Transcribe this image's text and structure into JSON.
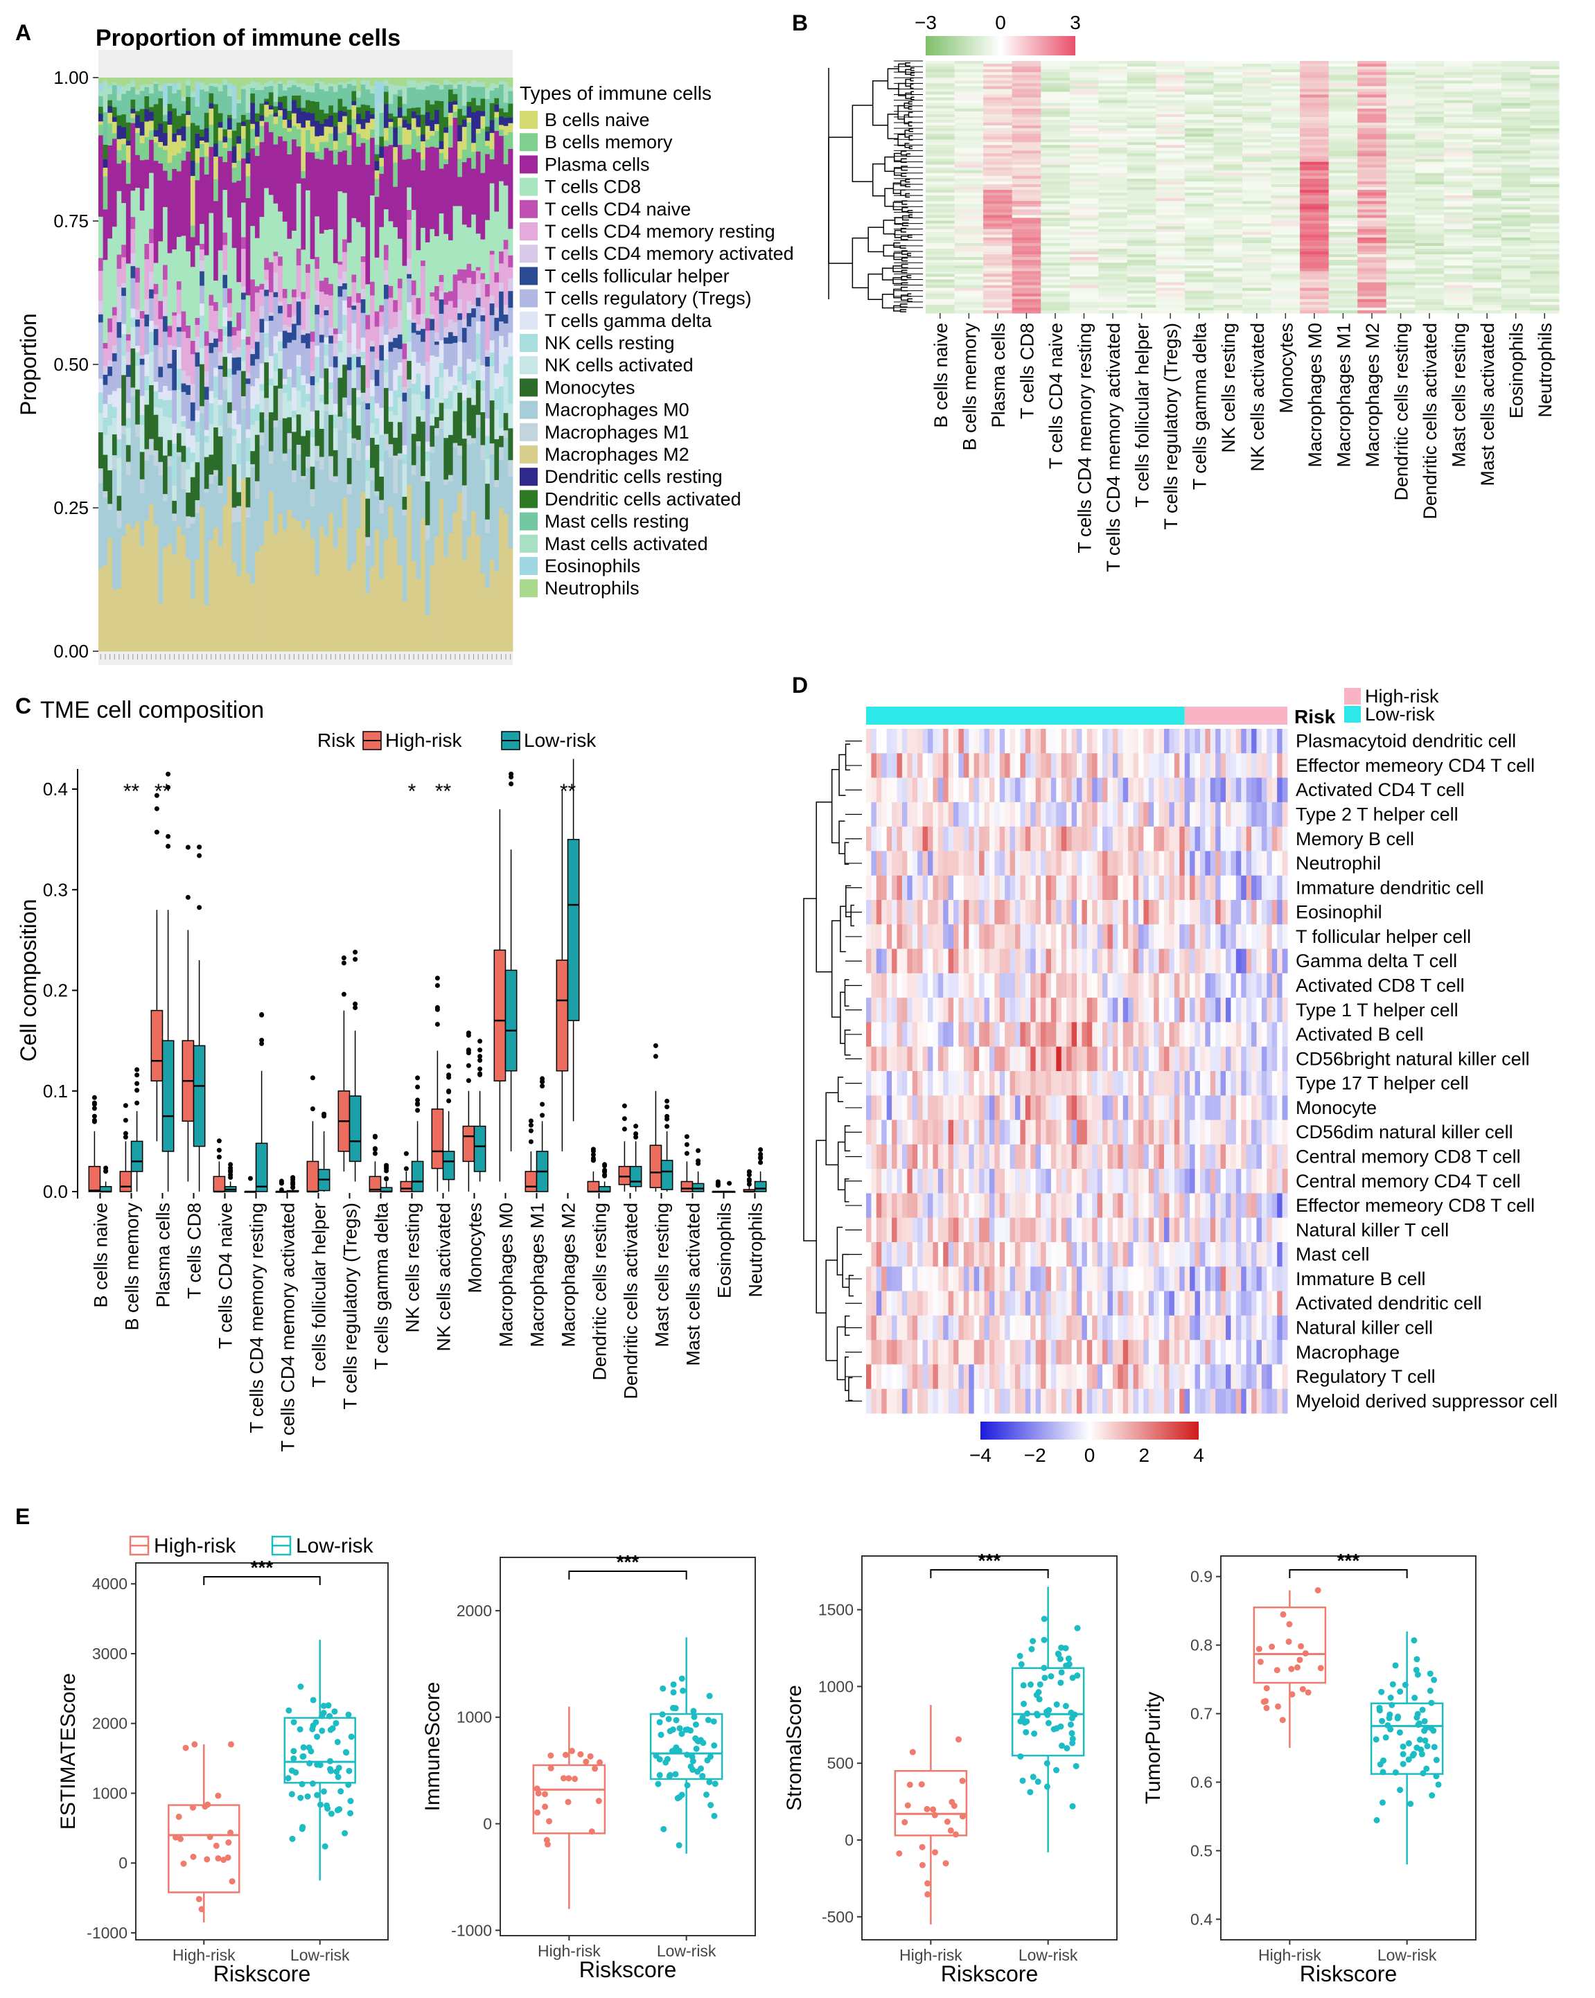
{
  "panels": {
    "A": "A",
    "B": "B",
    "C": "C",
    "D": "D",
    "E": "E"
  },
  "cell_types": [
    "B cells naive",
    "B cells memory",
    "Plasma cells",
    "T cells CD8",
    "T cells CD4 naive",
    "T cells CD4 memory resting",
    "T cells CD4 memory activated",
    "T cells follicular helper",
    "T cells regulatory (Tregs)",
    "T cells gamma delta",
    "NK cells resting",
    "NK cells activated",
    "Monocytes",
    "Macrophages M0",
    "Macrophages M1",
    "Macrophages M2",
    "Dendritic cells resting",
    "Dendritic cells activated",
    "Mast cells resting",
    "Mast cells activated",
    "Eosinophils",
    "Neutrophils"
  ],
  "cell_colors": {
    "B cells naive": "#d4db73",
    "B cells memory": "#7fd08f",
    "Plasma cells": "#a0279b",
    "T cells CD8": "#a7e6be",
    "T cells CD4 naive": "#c04fb4",
    "T cells CD4 memory resting": "#e4aadb",
    "T cells CD4 memory activated": "#d9c9e9",
    "T cells follicular helper": "#2a4b94",
    "T cells regulatory (Tregs)": "#b1b8e3",
    "T cells gamma delta": "#dfe6f5",
    "NK cells resting": "#a9dede",
    "NK cells activated": "#c7e6e6",
    "Monocytes": "#2b6c2a",
    "Macrophages M0": "#a7ced8",
    "Macrophages M1": "#c2d5de",
    "Macrophages M2": "#d8cd8b",
    "Dendritic cells resting": "#2d2a8c",
    "Dendritic cells activated": "#2e7a24",
    "Mast cells resting": "#73c8a3",
    "Mast cells activated": "#a9e0c4",
    "Eosinophils": "#9fd7e3",
    "Neutrophils": "#a9d98d"
  },
  "chart_data": [
    {
      "panel": "A",
      "type": "bar",
      "stacked": true,
      "title": "Proportion of immune cells",
      "ylabel": "Proportion",
      "xlabel": "",
      "ylim": [
        0,
        1
      ],
      "yticks": [
        "0.00",
        "0.25",
        "0.50",
        "0.75",
        "1.00"
      ],
      "legend_title": "Types of immune cells",
      "n_samples": 90,
      "mean_composition": [
        0.02,
        0.03,
        0.13,
        0.11,
        0.02,
        0.05,
        0.02,
        0.02,
        0.06,
        0.03,
        0.03,
        0.04,
        0.06,
        0.16,
        0.02,
        0.22,
        0.02,
        0.02,
        0.03,
        0.01,
        0.0,
        0.01
      ]
    },
    {
      "panel": "B",
      "type": "heatmap",
      "colorbar_ticks": [
        "−3",
        "0",
        "3"
      ],
      "colorbar_colors": [
        "#7fbf6a",
        "#ffffff",
        "#e8506a"
      ],
      "n_rows": 90,
      "columns_ref": "cell_types",
      "column_means": [
        0.1,
        0.4,
        1.2,
        1.4,
        0.1,
        0.5,
        0.2,
        0.1,
        0.5,
        0.1,
        0.2,
        0.3,
        0.3,
        1.6,
        0.1,
        2.4,
        0.1,
        0.1,
        0.3,
        0.1,
        0.0,
        0.0
      ]
    },
    {
      "panel": "C",
      "type": "box",
      "title": "TME cell composition",
      "ylabel": "Cell composition",
      "ylim": [
        0,
        0.42
      ],
      "yticks": [
        "0.0",
        "0.1",
        "0.2",
        "0.3",
        "0.4"
      ],
      "legend_title": "Risk",
      "series": [
        {
          "name": "High-risk",
          "color": "#ec6d5d",
          "stats": [
            [
              0,
              0,
              0.001,
              0.025,
              0.06
            ],
            [
              0,
              0,
              0.005,
              0.02,
              0.05
            ],
            [
              0.05,
              0.11,
              0.13,
              0.18,
              0.28
            ],
            [
              0.01,
              0.07,
              0.11,
              0.15,
              0.26
            ],
            [
              0,
              0,
              0,
              0.015,
              0.03
            ],
            [
              0,
              0,
              0,
              0,
              0
            ],
            [
              0,
              0,
              0,
              0,
              0
            ],
            [
              0,
              0,
              0,
              0.03,
              0.07
            ],
            [
              0.02,
              0.04,
              0.07,
              0.1,
              0.18
            ],
            [
              0,
              0,
              0.002,
              0.015,
              0.03
            ],
            [
              0,
              0,
              0.003,
              0.01,
              0.02
            ],
            [
              0,
              0.023,
              0.04,
              0.082,
              0.14
            ],
            [
              0,
              0.03,
              0.055,
              0.065,
              0.1
            ],
            [
              0.01,
              0.11,
              0.17,
              0.24,
              0.38
            ],
            [
              0,
              0,
              0.005,
              0.02,
              0.04
            ],
            [
              0.04,
              0.12,
              0.19,
              0.23,
              0.4
            ],
            [
              0,
              0,
              0,
              0.01,
              0.02
            ],
            [
              0,
              0.007,
              0.015,
              0.025,
              0.05
            ],
            [
              0,
              0.004,
              0.019,
              0.046,
              0.1
            ],
            [
              0,
              0,
              0.003,
              0.01,
              0.03
            ],
            [
              0,
              0,
              0,
              0,
              0
            ],
            [
              0,
              0,
              0,
              0.002,
              0.005
            ]
          ],
          "stars": [
            "",
            "**",
            "**",
            "",
            "",
            "",
            "",
            "",
            "",
            "",
            "*",
            "**",
            "",
            "",
            "",
            "**",
            "",
            "",
            "",
            "",
            "",
            ""
          ]
        },
        {
          "name": "Low-risk",
          "color": "#1ca0a8",
          "stats": [
            [
              0,
              0,
              0,
              0.005,
              0.01
            ],
            [
              0,
              0.02,
              0.03,
              0.05,
              0.08
            ],
            [
              0,
              0.04,
              0.075,
              0.15,
              0.28
            ],
            [
              0,
              0.045,
              0.105,
              0.145,
              0.23
            ],
            [
              0,
              0,
              0.002,
              0.005,
              0.01
            ],
            [
              0,
              0,
              0.005,
              0.048,
              0.12
            ],
            [
              0,
              0,
              0,
              0.001,
              0.002
            ],
            [
              0,
              0.001,
              0.012,
              0.022,
              0.06
            ],
            [
              0.01,
              0.03,
              0.05,
              0.095,
              0.16
            ],
            [
              0,
              0,
              0,
              0.004,
              0.01
            ],
            [
              0,
              0,
              0.01,
              0.03,
              0.07
            ],
            [
              0,
              0.012,
              0.03,
              0.04,
              0.08
            ],
            [
              0.01,
              0.02,
              0.045,
              0.065,
              0.1
            ],
            [
              0.04,
              0.12,
              0.16,
              0.22,
              0.34
            ],
            [
              0,
              0,
              0.02,
              0.04,
              0.07
            ],
            [
              0.07,
              0.17,
              0.285,
              0.35,
              0.43
            ],
            [
              0,
              0,
              0,
              0.005,
              0.01
            ],
            [
              0,
              0.005,
              0.01,
              0.025,
              0.05
            ],
            [
              0,
              0.002,
              0.02,
              0.031,
              0.06
            ],
            [
              0,
              0,
              0.003,
              0.008,
              0.02
            ],
            [
              0,
              0,
              0,
              0,
              0
            ],
            [
              0,
              0,
              0.003,
              0.01,
              0.02
            ]
          ]
        }
      ]
    },
    {
      "panel": "D",
      "type": "heatmap",
      "annotation_label": "Risk",
      "legend": [
        "High-risk",
        "Low-risk"
      ],
      "legend_colors": [
        "#f8b4c4",
        "#2de8e8"
      ],
      "n_low": 62,
      "n_high": 20,
      "colorbar_ticks": [
        "−4",
        "−2",
        "0",
        "2",
        "4"
      ],
      "colorbar_colors": [
        "#1a1adf",
        "#ffffff",
        "#d11a1a"
      ],
      "rows": [
        "Plasmacytoid dendritic cell",
        "Effector memeory CD4 T cell",
        "Activated CD4 T cell",
        "Type 2 T helper cell",
        "Memory B cell",
        "Neutrophil",
        "Immature dendritic cell",
        "Eosinophil",
        "T follicular helper cell",
        "Gamma delta T cell",
        "Activated CD8 T cell",
        "Type 1 T helper cell",
        "Activated B cell",
        "CD56bright natural killer cell",
        "Type 17 T helper cell",
        "Monocyte",
        "CD56dim natural killer cell",
        "Central memory CD8 T cell",
        "Central memory CD4 T cell",
        "Effector memeory CD8 T cell",
        "Natural killer T cell",
        "Mast cell",
        "Immature  B cell",
        "Activated dendritic cell",
        "Natural killer cell",
        "Macrophage",
        "Regulatory T cell",
        "Myeloid derived suppressor cell"
      ]
    },
    {
      "panel": "E",
      "type": "box",
      "xlabel": "Riskscore",
      "categories": [
        "High-risk",
        "Low-risk"
      ],
      "legend": [
        "High-risk",
        "Low-risk"
      ],
      "colors": [
        "#f07a6e",
        "#1bbcc4"
      ],
      "subplots": [
        {
          "ylabel": "ESTIMATEScore",
          "ylim": [
            -1100,
            4300
          ],
          "yticks": [
            -1000,
            0,
            1000,
            2000,
            3000,
            4000
          ],
          "sig": "***",
          "high": {
            "whiskers": [
              -850,
              1700
            ],
            "q1": -420,
            "median": 400,
            "q3": 830
          },
          "low": {
            "whiskers": [
              -250,
              3200
            ],
            "q1": 1150,
            "median": 1450,
            "q3": 2080
          },
          "n_high": 23,
          "n_low": 66
        },
        {
          "ylabel": "ImmuneScore",
          "ylim": [
            -1050,
            2500
          ],
          "yticks": [
            -1000,
            0,
            1000,
            2000
          ],
          "sig": "***",
          "high": {
            "whiskers": [
              -800,
              1100
            ],
            "q1": -90,
            "median": 320,
            "q3": 550
          },
          "low": {
            "whiskers": [
              -280,
              1750
            ],
            "q1": 420,
            "median": 660,
            "q3": 1030
          },
          "n_high": 23,
          "n_low": 66
        },
        {
          "ylabel": "StromalScore",
          "ylim": [
            -650,
            1850
          ],
          "yticks": [
            -500,
            0,
            500,
            1000,
            1500
          ],
          "sig": "***",
          "high": {
            "whiskers": [
              -550,
              880
            ],
            "q1": 30,
            "median": 170,
            "q3": 450
          },
          "low": {
            "whiskers": [
              -80,
              1650
            ],
            "q1": 550,
            "median": 820,
            "q3": 1120
          },
          "n_high": 23,
          "n_low": 66
        },
        {
          "ylabel": "TumorPurity",
          "ylim": [
            0.37,
            0.93
          ],
          "yticks": [
            0.4,
            0.5,
            0.6,
            0.7,
            0.8,
            0.9
          ],
          "sig": "***",
          "high": {
            "whiskers": [
              0.65,
              0.88
            ],
            "q1": 0.745,
            "median": 0.787,
            "q3": 0.855
          },
          "low": {
            "whiskers": [
              0.48,
              0.82
            ],
            "q1": 0.612,
            "median": 0.682,
            "q3": 0.715
          },
          "n_high": 23,
          "n_low": 66
        }
      ]
    }
  ]
}
